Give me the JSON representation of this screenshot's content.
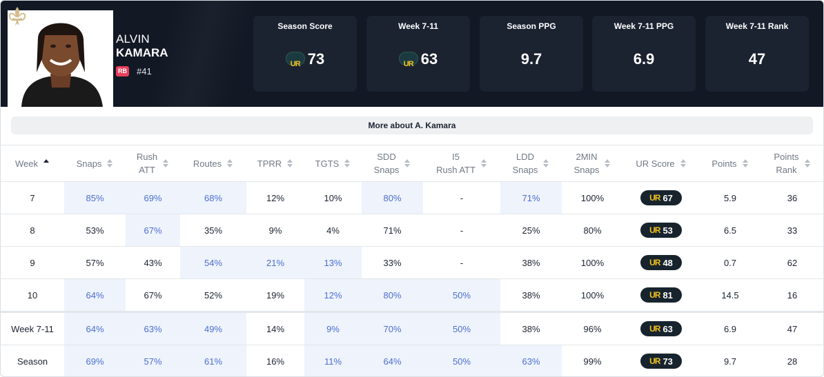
{
  "player": {
    "first_name": "ALVIN",
    "last_name": "KAMARA",
    "position": "RB",
    "jersey": "#41",
    "team_logo_icon": "fleur-de-lis-icon"
  },
  "stat_cards": [
    {
      "label": "Season Score",
      "value": "73",
      "ur_logo": true
    },
    {
      "label": "Week 7-11",
      "value": "63",
      "ur_logo": true
    },
    {
      "label": "Season PPG",
      "value": "9.7",
      "ur_logo": false
    },
    {
      "label": "Week 7-11 PPG",
      "value": "6.9",
      "ur_logo": false
    },
    {
      "label": "Week 7-11 Rank",
      "value": "47",
      "ur_logo": false
    }
  ],
  "ur_logo_text": "UR",
  "more_button": "More about A. Kamara",
  "table": {
    "columns": [
      {
        "label": "Week",
        "sort": "asc"
      },
      {
        "label": "Snaps",
        "sort": "none"
      },
      {
        "label": "Rush\nATT",
        "sort": "none"
      },
      {
        "label": "Routes",
        "sort": "none"
      },
      {
        "label": "TPRR",
        "sort": "none"
      },
      {
        "label": "TGTS",
        "sort": "none"
      },
      {
        "label": "SDD\nSnaps",
        "sort": "none"
      },
      {
        "label": "I5\nRush ATT",
        "sort": "none"
      },
      {
        "label": "LDD\nSnaps",
        "sort": "none"
      },
      {
        "label": "2MIN\nSnaps",
        "sort": "none"
      },
      {
        "label": "UR Score",
        "sort": "none"
      },
      {
        "label": "Points",
        "sort": "none"
      },
      {
        "label": "Points\nRank",
        "sort": "none"
      }
    ],
    "rows": [
      {
        "cells": [
          "7",
          "85%",
          "69%",
          "68%",
          "12%",
          "10%",
          "80%",
          "-",
          "71%",
          "100%",
          "67",
          "5.9",
          "36"
        ],
        "hl": [
          1,
          2,
          3,
          6,
          8
        ]
      },
      {
        "cells": [
          "8",
          "53%",
          "67%",
          "35%",
          "9%",
          "4%",
          "71%",
          "-",
          "25%",
          "80%",
          "53",
          "6.5",
          "33"
        ],
        "hl": [
          2
        ]
      },
      {
        "cells": [
          "9",
          "57%",
          "43%",
          "54%",
          "21%",
          "13%",
          "33%",
          "-",
          "38%",
          "100%",
          "48",
          "0.7",
          "62"
        ],
        "hl": [
          3,
          4,
          5
        ]
      },
      {
        "cells": [
          "10",
          "64%",
          "67%",
          "52%",
          "19%",
          "12%",
          "80%",
          "50%",
          "38%",
          "100%",
          "81",
          "14.5",
          "16"
        ],
        "hl": [
          1,
          5,
          6,
          7
        ]
      },
      {
        "cells": [
          "Week 7-11",
          "64%",
          "63%",
          "49%",
          "14%",
          "9%",
          "70%",
          "50%",
          "38%",
          "96%",
          "63",
          "6.9",
          "47"
        ],
        "hl": [
          1,
          2,
          3,
          5,
          6,
          7
        ],
        "separator": true
      },
      {
        "cells": [
          "Season",
          "69%",
          "57%",
          "61%",
          "16%",
          "11%",
          "64%",
          "50%",
          "63%",
          "99%",
          "73",
          "9.7",
          "28"
        ],
        "hl": [
          1,
          2,
          3,
          5,
          6,
          7,
          8
        ]
      }
    ],
    "highlight_color": "#eef3fc",
    "highlight_text_color": "#4d6fd0"
  }
}
